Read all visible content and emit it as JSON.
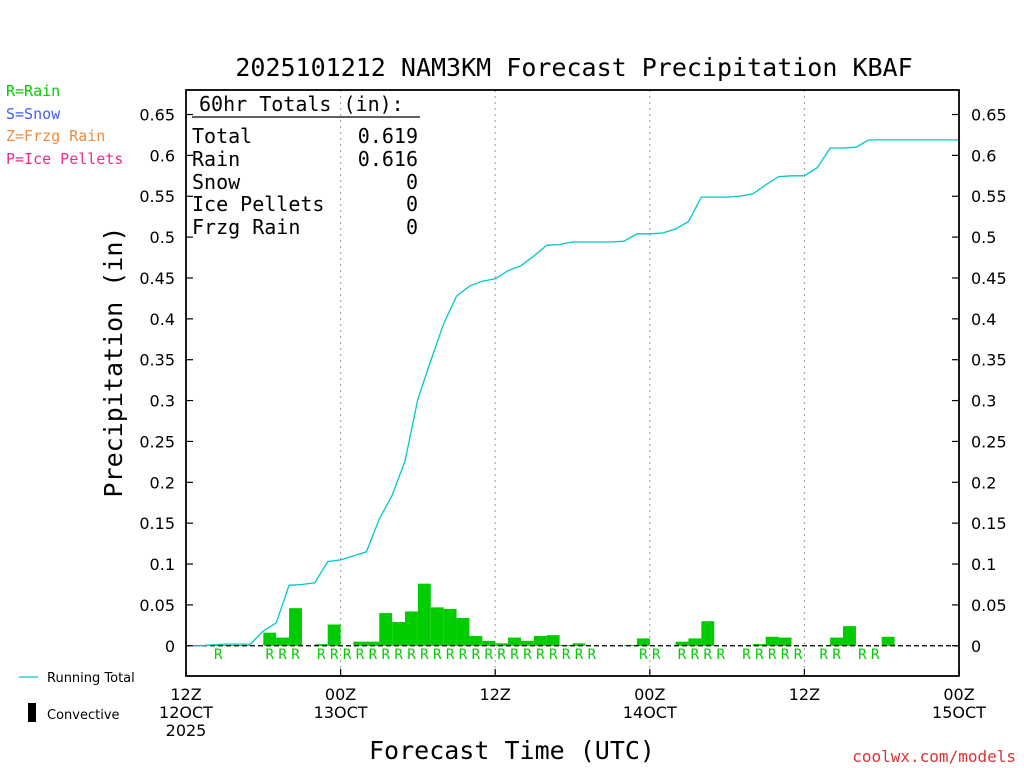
{
  "chart_data": {
    "type": "bar",
    "title": "2025101212 NAM3KM Forecast Precipitation KBAF",
    "ylabel": "Precipitation (in)",
    "xlabel": "Forecast Time (UTC)",
    "ylim": [
      -0.037,
      0.68
    ],
    "xlim": [
      0,
      60
    ],
    "grid": "dashed-vertical",
    "y_ticks": [
      "0.65",
      "0.6",
      "0.55",
      "0.5",
      "0.45",
      "0.4",
      "0.35",
      "0.3",
      "0.25",
      "0.2",
      "0.15",
      "0.1",
      "0.05",
      "0"
    ],
    "x_ticks": [
      {
        "hour": 0,
        "lines": [
          "12Z",
          "12OCT",
          "2025"
        ]
      },
      {
        "hour": 12,
        "lines": [
          "00Z",
          "13OCT"
        ]
      },
      {
        "hour": 24,
        "lines": [
          "12Z"
        ]
      },
      {
        "hour": 36,
        "lines": [
          "00Z",
          "14OCT"
        ]
      },
      {
        "hour": 48,
        "lines": [
          "12Z"
        ]
      },
      {
        "hour": 60,
        "lines": [
          "00Z",
          "15OCT"
        ]
      }
    ],
    "totals_box": {
      "header": "60hr Totals (in):",
      "rows": [
        {
          "label": "Total",
          "value": "0.619"
        },
        {
          "label": "Rain",
          "value": "0.616"
        },
        {
          "label": "Snow",
          "value": "0"
        },
        {
          "label": "Ice Pellets",
          "value": "0"
        },
        {
          "label": "Frzg Rain",
          "value": "0"
        }
      ]
    },
    "type_legend": [
      {
        "text": "R=Rain",
        "color": "#00cc00"
      },
      {
        "text": "S=Snow",
        "color": "#3c5cff"
      },
      {
        "text": "Z=Frzg Rain",
        "color": "#f08c3c"
      },
      {
        "text": "P=Ice Pellets",
        "color": "#ee2a8c"
      }
    ],
    "series_legend": [
      {
        "name": "Running Total",
        "color": "#00c8c8",
        "kind": "line"
      },
      {
        "name": "Convective",
        "color": "#000000",
        "kind": "bar"
      }
    ],
    "bar_color": "#00cc00",
    "hourly_precip": [
      0,
      0.001,
      0.001,
      0.001,
      0.001,
      0,
      0.016,
      0.01,
      0.046,
      0,
      0.002,
      0.026,
      0,
      0.005,
      0.005,
      0.04,
      0.029,
      0.042,
      0.076,
      0.047,
      0.045,
      0.034,
      0.012,
      0.006,
      0.003,
      0.01,
      0.006,
      0.012,
      0.013,
      0.001,
      0.003,
      0,
      0,
      0,
      0.001,
      0.009,
      0,
      0,
      0.005,
      0.009,
      0.03,
      0,
      0,
      0,
      0.002,
      0.011,
      0.01,
      0,
      0,
      0,
      0.01,
      0.024,
      0,
      0,
      0.011,
      0,
      0,
      0,
      0,
      0
    ],
    "precip_type_hours": [
      2,
      6,
      7,
      8,
      10,
      11,
      12,
      13,
      14,
      15,
      16,
      17,
      18,
      19,
      20,
      21,
      22,
      23,
      24,
      25,
      26,
      27,
      28,
      29,
      30,
      31,
      35,
      36,
      38,
      39,
      40,
      41,
      43,
      44,
      45,
      46,
      47,
      49,
      50,
      52,
      53
    ],
    "precip_type_label": "R",
    "running_total": {
      "x": [
        0,
        1,
        2,
        3,
        4,
        5,
        6,
        7,
        8,
        9,
        10,
        11,
        12,
        13,
        14,
        15,
        16,
        17,
        18,
        19,
        20,
        21,
        22,
        23,
        24,
        25,
        26,
        27,
        28,
        29,
        30,
        31,
        32,
        33,
        34,
        35,
        36,
        37,
        38,
        39,
        40,
        41,
        42,
        43,
        44,
        45,
        46,
        47,
        48,
        49,
        50,
        51,
        52,
        53,
        54,
        55,
        56,
        57,
        58,
        59,
        60
      ],
      "y": [
        0,
        0,
        0.001,
        0.002,
        0.002,
        0.002,
        0.018,
        0.028,
        0.074,
        0.075,
        0.077,
        0.103,
        0.105,
        0.11,
        0.115,
        0.155,
        0.184,
        0.226,
        0.302,
        0.349,
        0.394,
        0.428,
        0.44,
        0.446,
        0.449,
        0.459,
        0.465,
        0.477,
        0.49,
        0.491,
        0.494,
        0.494,
        0.494,
        0.494,
        0.495,
        0.504,
        0.504,
        0.505,
        0.51,
        0.519,
        0.549,
        0.549,
        0.549,
        0.55,
        0.553,
        0.564,
        0.574,
        0.575,
        0.575,
        0.585,
        0.609,
        0.609,
        0.61,
        0.619,
        0.619,
        0.619,
        0.619,
        0.619,
        0.619,
        0.619,
        0.619
      ]
    }
  },
  "credit": "coolwx.com/models"
}
